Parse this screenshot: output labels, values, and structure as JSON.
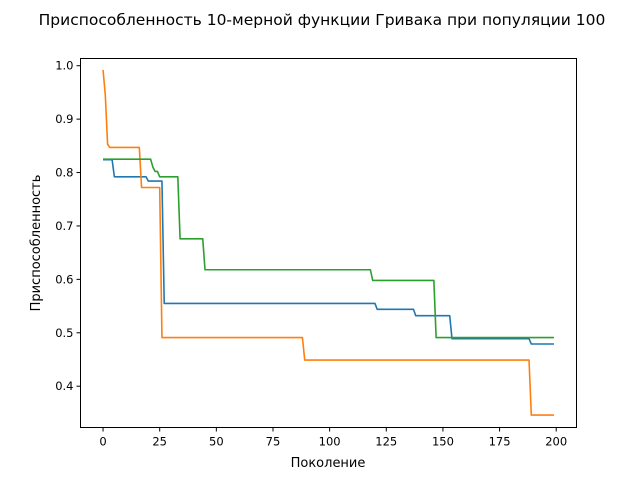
{
  "chart_data": {
    "type": "line",
    "title": "Приспособленность 10-мерной функции Гривака при популяции 100",
    "xlabel": "Поколение",
    "ylabel": "Приспособленность",
    "xlim": [
      -9.95,
      208.95
    ],
    "ylim": [
      0.3227,
      1.0135
    ],
    "xticks": [
      0,
      25,
      50,
      75,
      100,
      125,
      150,
      175,
      200
    ],
    "xtick_labels": [
      "0",
      "25",
      "50",
      "75",
      "100",
      "125",
      "150",
      "175",
      "200"
    ],
    "yticks": [
      0.4,
      0.5,
      0.6,
      0.7,
      0.8,
      0.9,
      1.0
    ],
    "ytick_labels": [
      "0.4",
      "0.5",
      "0.6",
      "0.7",
      "0.8",
      "0.9",
      "1.0"
    ],
    "grid": false,
    "legend": false,
    "series": [
      {
        "color": "#1f77b4",
        "points": [
          [
            0,
            0.824
          ],
          [
            4,
            0.824
          ],
          [
            5,
            0.792
          ],
          [
            19,
            0.792
          ],
          [
            20,
            0.784
          ],
          [
            26,
            0.784
          ],
          [
            27,
            0.555
          ],
          [
            120,
            0.555
          ],
          [
            121,
            0.544
          ],
          [
            137,
            0.544
          ],
          [
            138,
            0.532
          ],
          [
            153,
            0.532
          ],
          [
            154,
            0.489
          ],
          [
            188,
            0.489
          ],
          [
            189,
            0.479
          ],
          [
            199,
            0.479
          ]
        ]
      },
      {
        "color": "#ff7f0e",
        "points": [
          [
            0,
            0.992
          ],
          [
            1,
            0.945
          ],
          [
            2,
            0.853
          ],
          [
            3,
            0.847
          ],
          [
            16,
            0.847
          ],
          [
            17,
            0.772
          ],
          [
            24,
            0.772
          ],
          [
            25,
            0.772
          ],
          [
            26,
            0.491
          ],
          [
            88,
            0.491
          ],
          [
            89,
            0.449
          ],
          [
            188,
            0.449
          ],
          [
            189,
            0.346
          ],
          [
            199,
            0.346
          ]
        ]
      },
      {
        "color": "#2ca02c",
        "points": [
          [
            0,
            0.825
          ],
          [
            21,
            0.825
          ],
          [
            22,
            0.81
          ],
          [
            23,
            0.802
          ],
          [
            24,
            0.802
          ],
          [
            25,
            0.792
          ],
          [
            33,
            0.792
          ],
          [
            34,
            0.676
          ],
          [
            44,
            0.676
          ],
          [
            45,
            0.618
          ],
          [
            118,
            0.618
          ],
          [
            119,
            0.598
          ],
          [
            146,
            0.598
          ],
          [
            147,
            0.491
          ],
          [
            199,
            0.491
          ]
        ]
      }
    ]
  }
}
